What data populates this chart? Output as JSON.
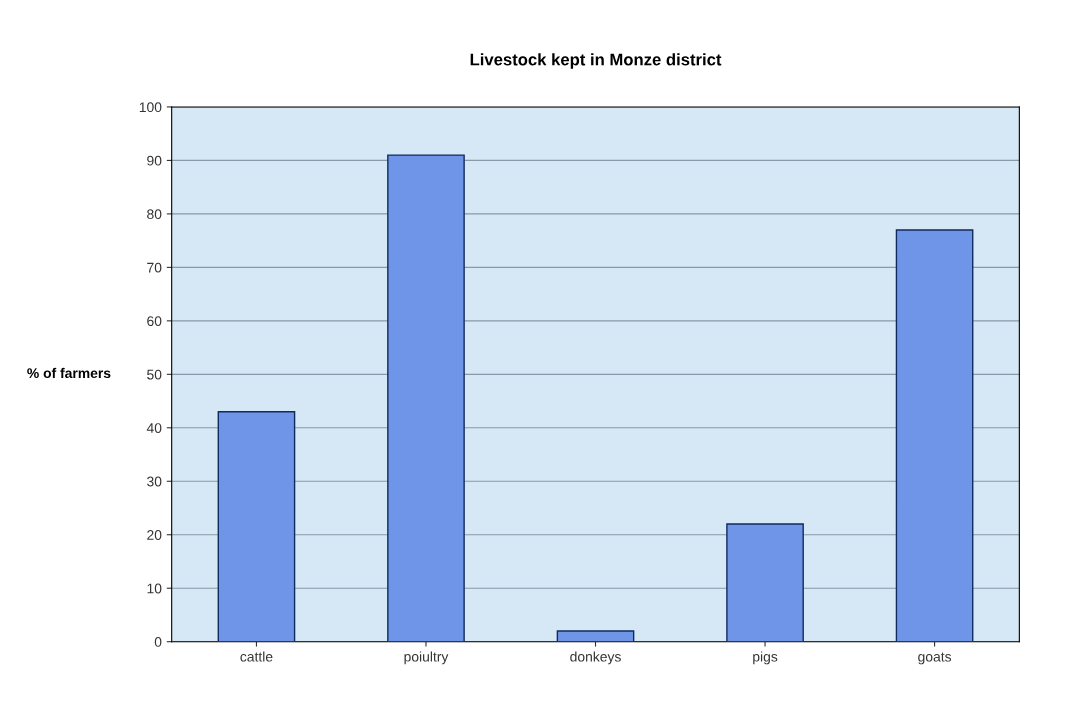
{
  "chart_data": {
    "type": "bar",
    "title": "Livestock kept in Monze district",
    "ylabel": "% of farmers",
    "categories": [
      "cattle",
      "poiultry",
      "donkeys",
      "pigs",
      "goats"
    ],
    "values": [
      43,
      91,
      2,
      22,
      77
    ],
    "color": "#6f95e8",
    "ylim": [
      0,
      100
    ],
    "yticks": [
      0,
      10,
      20,
      30,
      40,
      50,
      60,
      70,
      80,
      90,
      100
    ],
    "grid": "y"
  }
}
